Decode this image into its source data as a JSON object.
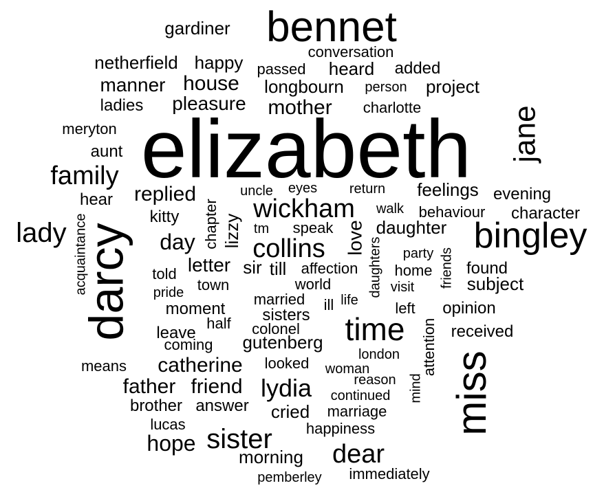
{
  "words": [
    "elizabeth",
    "bennet",
    "darcy",
    "miss",
    "bingley",
    "jane",
    "time",
    "sister",
    "wickham",
    "collins",
    "lady",
    "family",
    "dear",
    "lydia",
    "gardiner",
    "netherfield",
    "happy",
    "conversation",
    "passed",
    "heard",
    "added",
    "manner",
    "house",
    "longbourn",
    "person",
    "project",
    "ladies",
    "pleasure",
    "mother",
    "charlotte",
    "meryton",
    "aunt",
    "hear",
    "replied",
    "uncle",
    "eyes",
    "return",
    "feelings",
    "evening",
    "kitty",
    "chapter",
    "lizzy",
    "walk",
    "behaviour",
    "character",
    "acquaintance",
    "day",
    "tm",
    "speak",
    "love",
    "daughter",
    "party",
    "daughters",
    "friends",
    "letter",
    "sir",
    "till",
    "affection",
    "home",
    "found",
    "told",
    "world",
    "visit",
    "subject",
    "pride",
    "town",
    "married",
    "ill",
    "life",
    "left",
    "opinion",
    "moment",
    "sisters",
    "attention",
    "received",
    "leave",
    "half",
    "colonel",
    "coming",
    "gutenberg",
    "means",
    "catherine",
    "looked",
    "london",
    "woman",
    "mind",
    "reason",
    "father",
    "friend",
    "continued",
    "brother",
    "answer",
    "cried",
    "marriage",
    "lucas",
    "happiness",
    "hope",
    "morning",
    "pemberley",
    "immediately"
  ]
}
